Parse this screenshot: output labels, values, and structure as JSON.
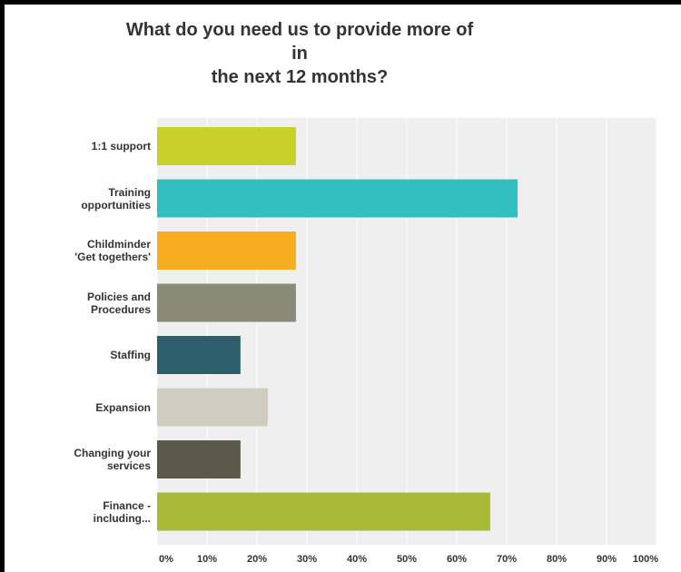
{
  "chart_data": {
    "type": "bar",
    "orientation": "horizontal",
    "title": "What do you need us to provide more of in the next 12 months?",
    "title_lines": [
      "What do you need us to provide more of in",
      "the next 12 months?"
    ],
    "categories": [
      [
        "1:1 support"
      ],
      [
        "Training",
        "opportunities"
      ],
      [
        "Childminder",
        "'Get togethers'"
      ],
      [
        "Policies and",
        "Procedures"
      ],
      [
        "Staffing"
      ],
      [
        "Expansion"
      ],
      [
        "Changing your",
        "services"
      ],
      [
        "Finance -",
        "including..."
      ]
    ],
    "values": [
      27.8,
      72.2,
      27.8,
      27.8,
      16.7,
      22.2,
      16.7,
      66.7
    ],
    "colors": [
      "#c8d02c",
      "#33bec0",
      "#f7ad1f",
      "#898a77",
      "#2c5f6b",
      "#cfcdbf",
      "#5b594a",
      "#a8ba37"
    ],
    "xlim": [
      0,
      100
    ],
    "xticks": [
      "0%",
      "10%",
      "20%",
      "30%",
      "40%",
      "50%",
      "60%",
      "70%",
      "80%",
      "90%",
      "100%"
    ],
    "grid": true,
    "plot_background": "#efefef"
  }
}
